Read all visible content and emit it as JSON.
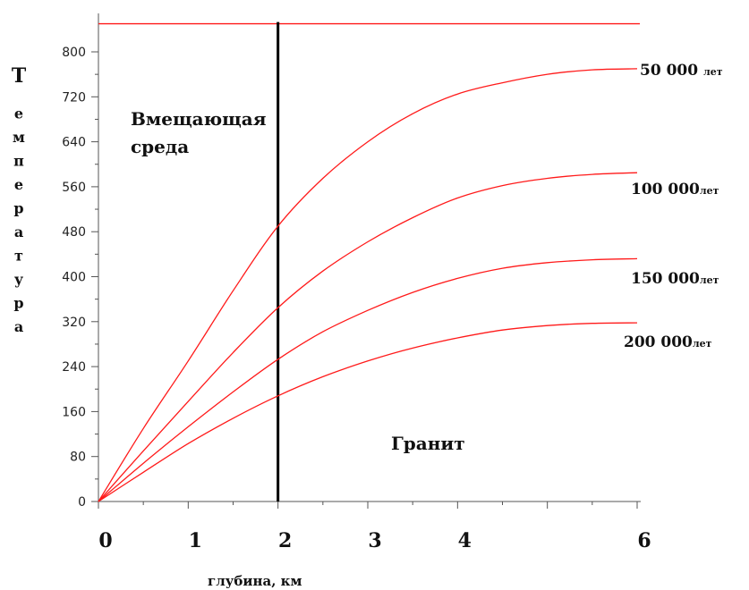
{
  "chart_data": {
    "type": "line",
    "title": "",
    "xlabel": "глубина, км",
    "ylabel": "Температура",
    "xlim": [
      0,
      6
    ],
    "ylim": [
      0,
      850
    ],
    "x_ticks": [
      0,
      1,
      2,
      3,
      4,
      5,
      6
    ],
    "x_tick_labels": [
      "0",
      "1",
      "2",
      "3",
      "4",
      "",
      "6"
    ],
    "y_ticks": [
      0,
      80,
      160,
      240,
      320,
      400,
      480,
      560,
      640,
      720,
      800
    ],
    "y_tick_labels": [
      "0",
      "80",
      "160",
      "240",
      "320",
      "400",
      "480",
      "560",
      "640",
      "720",
      "800"
    ],
    "grid": false,
    "series": [
      {
        "name": "50 000",
        "unit": "лет",
        "x": [
          0,
          0.5,
          1,
          1.5,
          2,
          2.5,
          3,
          3.5,
          4,
          4.5,
          5,
          5.5,
          6
        ],
        "values": [
          0,
          130,
          250,
          375,
          490,
          575,
          640,
          690,
          725,
          745,
          760,
          768,
          770
        ]
      },
      {
        "name": "100 000",
        "unit": "лет",
        "x": [
          0,
          0.5,
          1,
          1.5,
          2,
          2.5,
          3,
          3.5,
          4,
          4.5,
          5,
          5.5,
          6
        ],
        "values": [
          0,
          90,
          178,
          265,
          345,
          410,
          462,
          505,
          540,
          562,
          575,
          582,
          585
        ]
      },
      {
        "name": "150 000",
        "unit": "лет",
        "x": [
          0,
          0.5,
          1,
          1.5,
          2,
          2.5,
          3,
          3.5,
          4,
          4.5,
          5,
          5.5,
          6
        ],
        "values": [
          0,
          68,
          133,
          195,
          253,
          302,
          340,
          372,
          397,
          415,
          425,
          430,
          432
        ]
      },
      {
        "name": "200 000",
        "unit": "лет",
        "x": [
          0,
          0.5,
          1,
          1.5,
          2,
          2.5,
          3,
          3.5,
          4,
          4.5,
          5,
          5.5,
          6
        ],
        "values": [
          0,
          52,
          103,
          148,
          188,
          222,
          250,
          273,
          291,
          305,
          313,
          317,
          318
        ]
      }
    ],
    "reference_lines": {
      "horizontal_y": 850,
      "vertical_x": 2
    },
    "annotations": [
      {
        "text_line1": "Вмещающая",
        "text_line2": "среда"
      },
      {
        "text": "Гранит"
      }
    ],
    "colors": {
      "curves": "#ff1a1a",
      "axes": "#555555",
      "vertical_line": "#000000"
    }
  }
}
